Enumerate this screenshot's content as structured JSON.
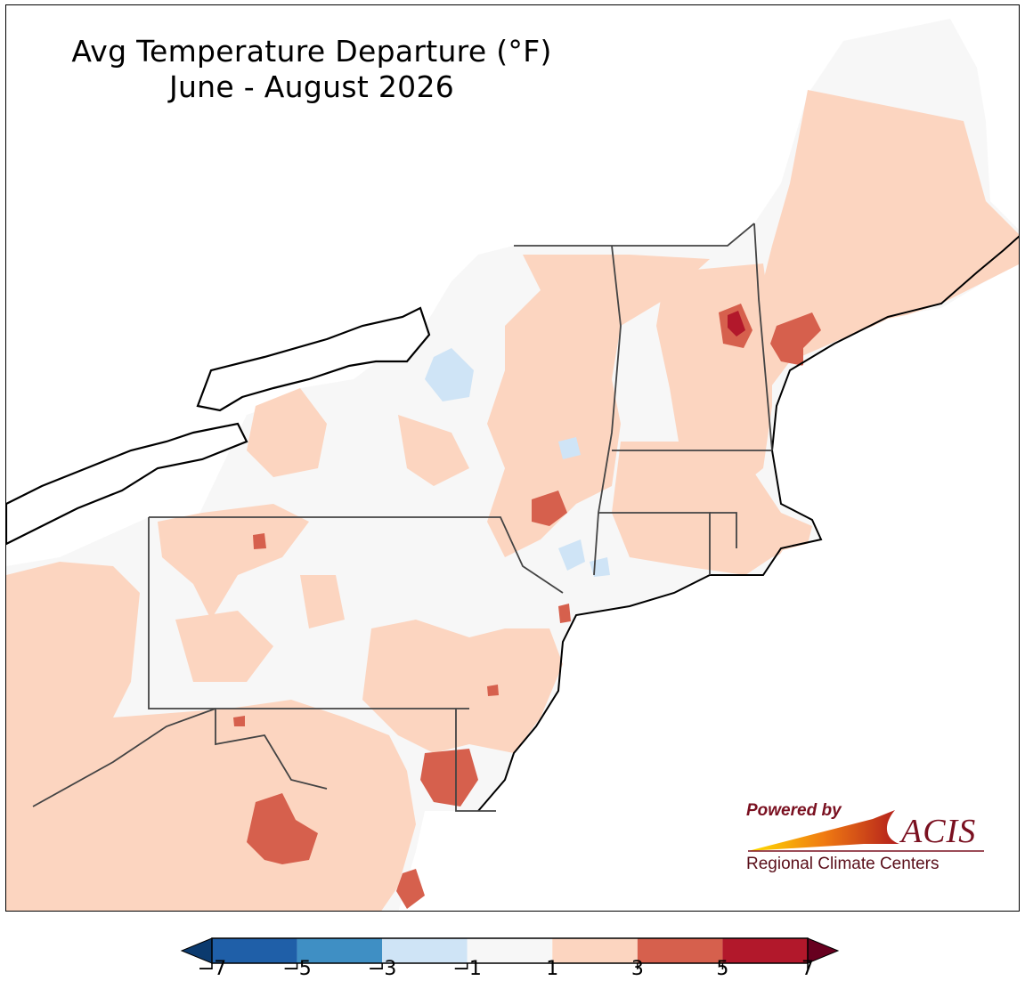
{
  "title": {
    "line1": "Avg Temperature Departure (°F)",
    "line2": "June - August 2026"
  },
  "legend": {
    "bins": [
      {
        "from": -7,
        "to": -5,
        "color": "#1f5fa8"
      },
      {
        "from": -5,
        "to": -3,
        "color": "#3f8fc4"
      },
      {
        "from": -3,
        "to": -1,
        "color": "#cfe4f6"
      },
      {
        "from": -1,
        "to": 1,
        "color": "#f7f7f7"
      },
      {
        "from": 1,
        "to": 3,
        "color": "#fcd5c0"
      },
      {
        "from": 3,
        "to": 5,
        "color": "#d6604d"
      },
      {
        "from": 5,
        "to": 7,
        "color": "#b2182b"
      }
    ],
    "under_color": "#0b3a6e",
    "over_color": "#67001f",
    "ticks": [
      "−7",
      "−5",
      "−3",
      "−1",
      "1",
      "3",
      "5",
      "7"
    ]
  },
  "logo": {
    "powered_by": "Powered by",
    "name": "ACIS",
    "subtitle": "Regional Climate Centers"
  },
  "colors": {
    "near_normal": "#f7f7f7",
    "warm": "#fcd5c0",
    "hot": "#d6604d",
    "very_hot": "#b2182b",
    "cool": "#cfe4f6",
    "boundary": "#000000",
    "county": "#b8b8b8"
  }
}
